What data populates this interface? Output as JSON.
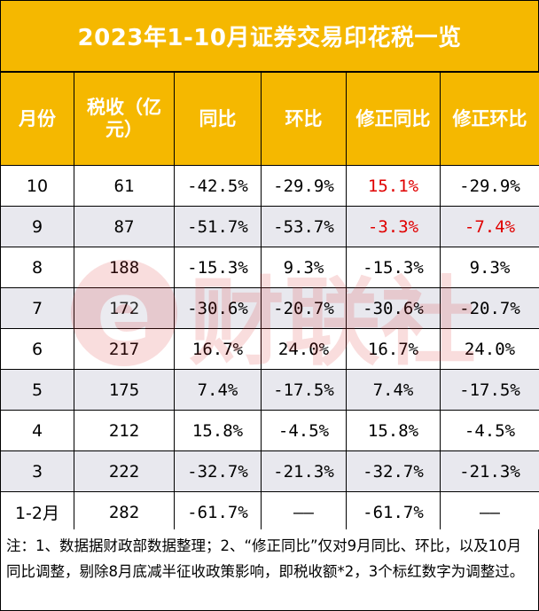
{
  "title": "2023年1-10月证券交易印花税一览",
  "headers": [
    "月份",
    "税收（亿元）",
    "同比",
    "环比",
    "修正同比",
    "修正环比"
  ],
  "rows": [
    {
      "month": "10",
      "tax": "61",
      "yoy": "-42.5%",
      "mom": "-29.9%",
      "adj_yoy": "15.1%",
      "adj_mom": "-29.9%",
      "adj_yoy_red": true,
      "adj_mom_red": false
    },
    {
      "month": "9",
      "tax": "87",
      "yoy": "-51.7%",
      "mom": "-53.7%",
      "adj_yoy": "-3.3%",
      "adj_mom": "-7.4%",
      "adj_yoy_red": true,
      "adj_mom_red": true
    },
    {
      "month": "8",
      "tax": "188",
      "yoy": "-15.3%",
      "mom": "9.3%",
      "adj_yoy": "-15.3%",
      "adj_mom": "9.3%"
    },
    {
      "month": "7",
      "tax": "172",
      "yoy": "-30.6%",
      "mom": "-20.7%",
      "adj_yoy": "-30.6%",
      "adj_mom": "-20.7%"
    },
    {
      "month": "6",
      "tax": "217",
      "yoy": "16.7%",
      "mom": "24.0%",
      "adj_yoy": "16.7%",
      "adj_mom": "24.0%"
    },
    {
      "month": "5",
      "tax": "175",
      "yoy": "7.4%",
      "mom": "-17.5%",
      "adj_yoy": "7.4%",
      "adj_mom": "-17.5%"
    },
    {
      "month": "4",
      "tax": "212",
      "yoy": "15.8%",
      "mom": "-4.5%",
      "adj_yoy": "15.8%",
      "adj_mom": "-4.5%"
    },
    {
      "month": "3",
      "tax": "222",
      "yoy": "-32.7%",
      "mom": "-21.3%",
      "adj_yoy": "-32.7%",
      "adj_mom": "-21.3%"
    },
    {
      "month": "1-2月",
      "tax": "282",
      "yoy": "-61.7%",
      "mom": "——",
      "adj_yoy": "-61.7%",
      "adj_mom": "——"
    }
  ],
  "note": "注：1、数据据财政部数据整理；2、“修正同比”仅对9月同比、环比，以及10月同比调整，剔除8月底减半征收政策影响，即税收额*2，3个标红数字为调整过。",
  "watermark_text": "财联社",
  "colors": {
    "header_bg": "#f5b800",
    "header_text": "#ffffff",
    "stripe": "#e8e8ee",
    "highlight": "#e00000"
  }
}
